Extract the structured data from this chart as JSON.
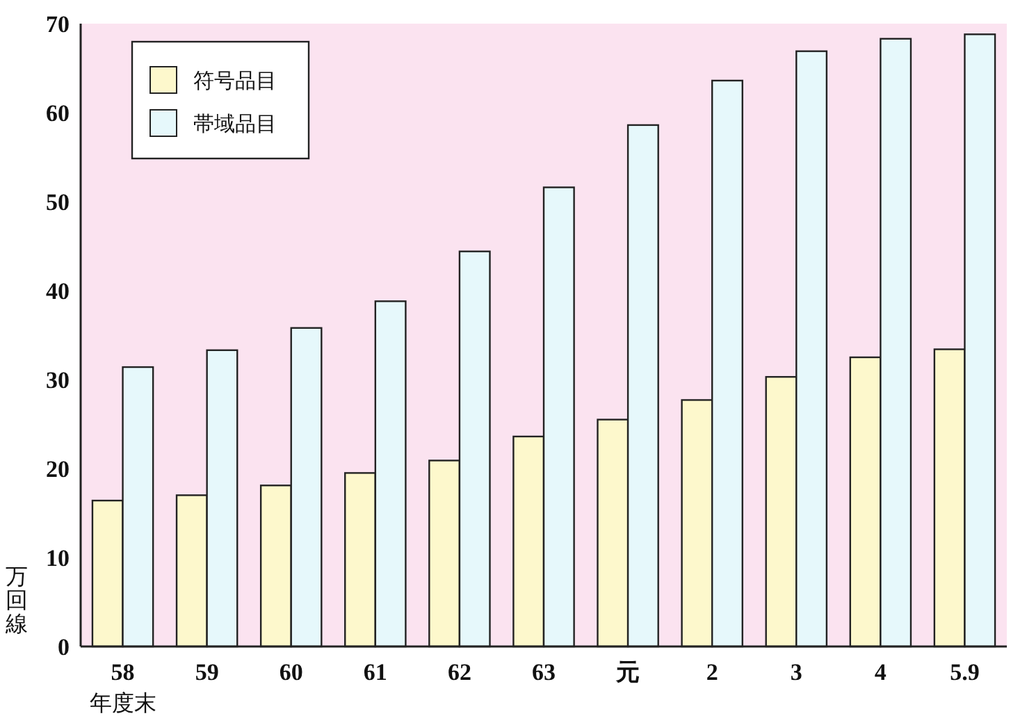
{
  "chart_data": {
    "type": "bar",
    "xlabel": "年度末",
    "ylabel": "万回線",
    "categories": [
      "58",
      "59",
      "60",
      "61",
      "62",
      "63",
      "元",
      "2",
      "3",
      "4",
      "5.9"
    ],
    "series": [
      {
        "name": "符号品目",
        "color": "#fdf8cc",
        "values": [
          16.4,
          17.0,
          18.1,
          19.5,
          20.9,
          23.6,
          25.5,
          27.7,
          30.3,
          32.5,
          33.4
        ]
      },
      {
        "name": "帯域品目",
        "color": "#e6f8fb",
        "values": [
          31.4,
          33.3,
          35.8,
          38.8,
          44.4,
          51.6,
          58.6,
          63.6,
          66.9,
          68.3,
          68.8
        ]
      }
    ],
    "ylim": [
      0,
      70
    ],
    "yticks": [
      0,
      10,
      20,
      30,
      40,
      50,
      60,
      70
    ],
    "legend": "top left"
  }
}
